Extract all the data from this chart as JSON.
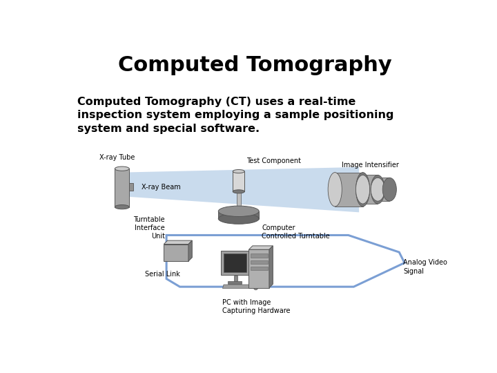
{
  "title": "Computed Tomography",
  "title_fontsize": 22,
  "title_fontweight": "bold",
  "body_text": "Computed Tomography (CT) uses a real-time\ninspection system employing a sample positioning\nsystem and special software.",
  "body_fontsize": 11.5,
  "body_fontweight": "bold",
  "background_color": "#ffffff",
  "text_color": "#000000",
  "label_fontsize": 7.0,
  "diagram_labels": {
    "xray_tube": "X-ray Tube",
    "xray_beam": "X-ray Beam",
    "test_component": "Test Component",
    "image_intensifier": "Image Intensifier",
    "turntable": "Computer\nControlled Turntable",
    "interface_unit": "Turntable\nInterface\nUnit",
    "serial_link": "Serial Link",
    "pc": "PC with Image\nCapturing Hardware",
    "analog_video": "Analog Video\nSignal"
  },
  "beam_color": "#b8cfe8",
  "loop_color": "#7b9fd4",
  "comp_color": "#a8a8a8",
  "comp_light": "#cccccc",
  "comp_dark": "#787878"
}
